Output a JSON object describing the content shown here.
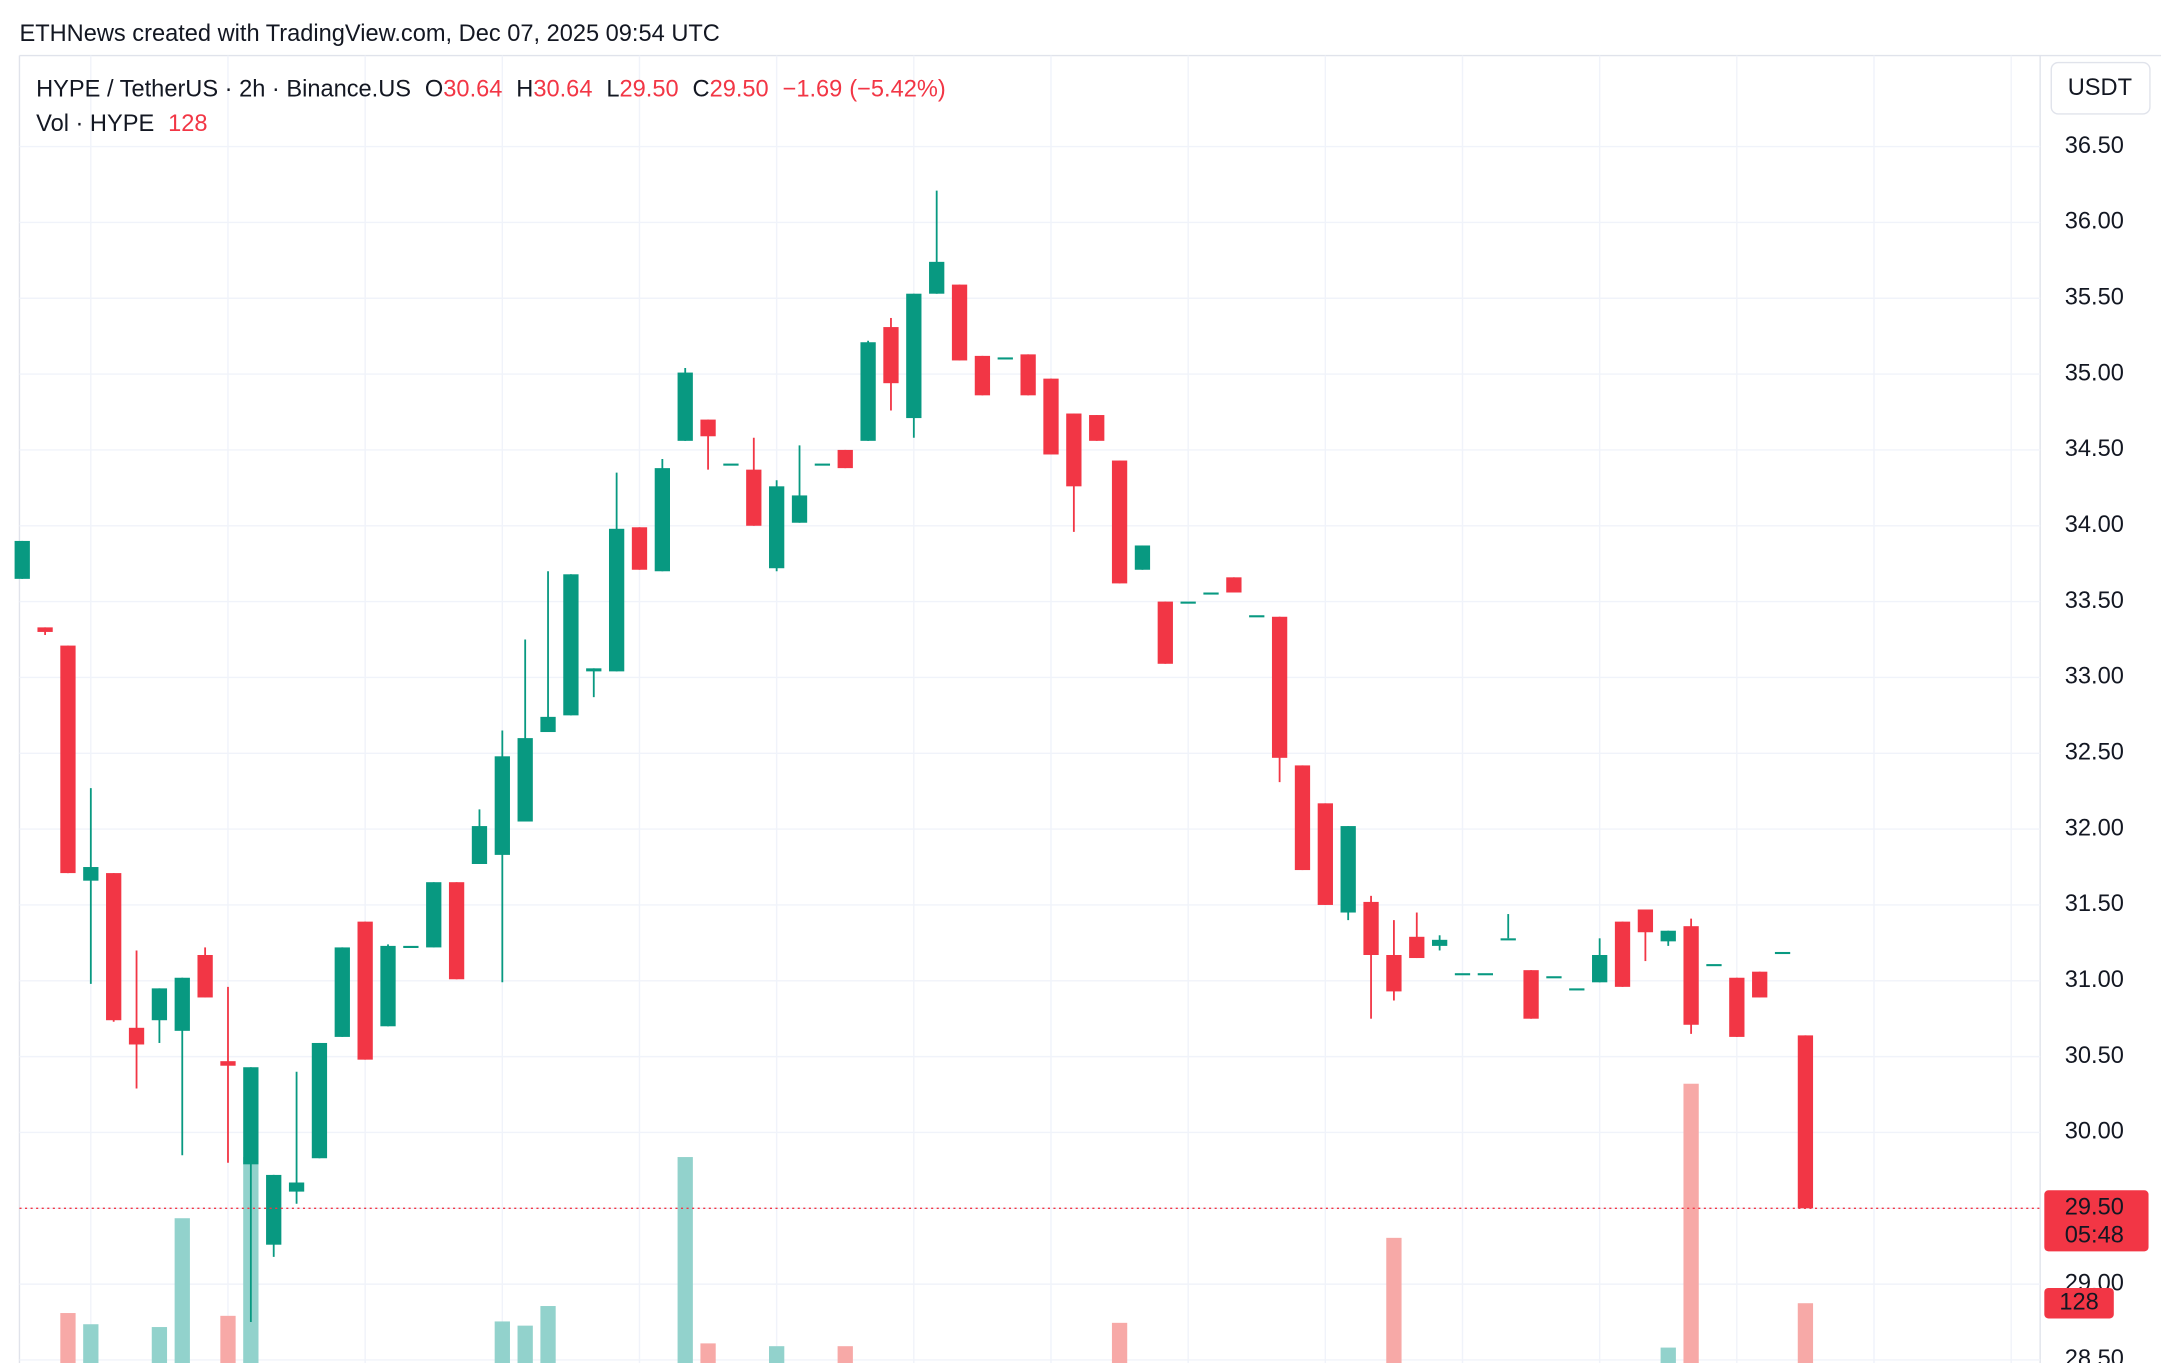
{
  "attribution": "ETHNews created with TradingView.com, Dec 07, 2025 09:54 UTC",
  "chart_data": {
    "type": "candlestick",
    "legend": {
      "symbol": "HYPE / TetherUS · 2h · Binance.US",
      "labels": [
        "O",
        "H",
        "L",
        "C"
      ],
      "values": [
        30.64,
        30.64,
        {
          "value": 29.5,
          "label": "29.50"
        },
        {
          "value": 29.5,
          "label": "29.50"
        }
      ],
      "change": {
        "value": -1.69,
        "label": "−1.69"
      },
      "change_pct": {
        "value": -5.42,
        "label": "(−5.42%)"
      },
      "volume_label": "Vol · HYPE",
      "volume": 128
    },
    "axis_unit": "USDT",
    "last_price": {
      "value": 29.5,
      "label": "29.50"
    },
    "countdown": "05:48",
    "last_volume": 128,
    "up_color": "#089981",
    "down_color": "#f23645",
    "up_volume_color": "#92d2cc",
    "down_volume_color": "#f7a9a7",
    "grid": true,
    "ylim": [
      28.48,
      37.1
    ],
    "yticks": [
      {
        "value": 28.5,
        "label": "28.50"
      },
      {
        "value": 29,
        "label": "29.00"
      },
      {
        "value": 29.5,
        "label": "29.50"
      },
      {
        "value": 30,
        "label": "30.00"
      },
      {
        "value": 30.5,
        "label": "30.50"
      },
      {
        "value": 31,
        "label": "31.00"
      },
      {
        "value": 31.5,
        "label": "31.50"
      },
      {
        "value": 32,
        "label": "32.00"
      },
      {
        "value": 32.5,
        "label": "32.50"
      },
      {
        "value": 33,
        "label": "33.00"
      },
      {
        "value": 33.5,
        "label": "33.50"
      },
      {
        "value": 34,
        "label": "34.00"
      },
      {
        "value": 34.5,
        "label": "34.50"
      },
      {
        "value": 35,
        "label": "35.00"
      },
      {
        "value": 35.5,
        "label": "35.50"
      },
      {
        "value": 36,
        "label": "36.00"
      },
      {
        "value": 36.5,
        "label": "36.50"
      }
    ],
    "open": [
      33.65,
      33.33,
      33.21,
      31.66,
      31.71,
      30.69,
      30.74,
      30.67,
      31.17,
      30.47,
      29.79,
      29.26,
      29.61,
      29.83,
      30.63,
      31.39,
      30.7,
      31.23,
      31.22,
      31.65,
      31.77,
      31.83,
      32.05,
      32.64,
      32.75,
      33.04,
      33.04,
      33.99,
      33.7,
      34.56,
      34.7,
      34.41,
      34.37,
      33.72,
      34.02,
      34.41,
      34.5,
      34.56,
      35.31,
      34.71,
      35.53,
      35.59,
      35.12,
      35.11,
      35.13,
      34.97,
      34.74,
      34.73,
      34.43,
      33.71,
      33.5,
      33.5,
      33.56,
      33.66,
      33.41,
      33.4,
      32.42,
      32.17,
      31.45,
      31.52,
      31.17,
      31.29,
      31.23,
      31.05,
      31.05,
      31.28,
      31.07,
      31.03,
      30.95,
      30.99,
      31.39,
      31.47,
      31.26,
      31.36,
      31.11,
      31.02,
      31.06,
      31.19,
      30.64
    ],
    "high": [
      33.9,
      33.33,
      33.21,
      32.27,
      31.71,
      31.2,
      30.95,
      31.02,
      31.22,
      30.96,
      30.43,
      29.72,
      30.4,
      30.59,
      31.22,
      31.39,
      31.24,
      31.23,
      31.65,
      31.65,
      32.13,
      32.65,
      33.25,
      33.7,
      33.68,
      33.06,
      34.35,
      33.99,
      34.44,
      35.04,
      34.7,
      34.41,
      34.58,
      34.3,
      34.53,
      34.41,
      34.5,
      35.22,
      35.37,
      35.53,
      36.21,
      35.59,
      35.12,
      35.11,
      35.13,
      34.97,
      34.74,
      34.73,
      34.43,
      33.87,
      33.5,
      33.5,
      33.56,
      33.66,
      33.41,
      33.4,
      32.42,
      32.17,
      32.02,
      31.56,
      31.4,
      31.45,
      31.3,
      31.05,
      31.05,
      31.44,
      31.07,
      31.03,
      30.95,
      31.28,
      31.39,
      31.47,
      31.33,
      31.41,
      31.11,
      31.02,
      31.06,
      31.19,
      30.64
    ],
    "low": [
      33.65,
      33.28,
      31.71,
      30.98,
      30.73,
      30.29,
      30.59,
      29.85,
      30.89,
      29.8,
      28.75,
      29.18,
      29.53,
      29.83,
      30.63,
      30.48,
      30.7,
      31.23,
      31.22,
      31.01,
      31.77,
      30.99,
      32.05,
      32.64,
      32.75,
      32.87,
      33.04,
      33.71,
      33.7,
      34.56,
      34.37,
      34.41,
      34.0,
      33.7,
      34.02,
      34.41,
      34.38,
      34.56,
      34.76,
      34.58,
      35.53,
      35.09,
      34.86,
      35.11,
      34.86,
      34.47,
      33.96,
      34.56,
      33.62,
      33.71,
      33.09,
      33.5,
      33.56,
      33.56,
      33.41,
      32.31,
      31.73,
      31.5,
      31.4,
      30.75,
      30.87,
      31.15,
      31.2,
      31.05,
      31.05,
      31.28,
      30.75,
      31.03,
      30.95,
      30.99,
      30.96,
      31.13,
      31.23,
      30.65,
      31.11,
      30.63,
      30.89,
      31.19,
      29.5
    ],
    "close": [
      33.9,
      33.3,
      31.71,
      31.75,
      30.74,
      30.58,
      30.95,
      31.02,
      30.89,
      30.44,
      30.43,
      29.72,
      29.67,
      30.59,
      31.22,
      30.48,
      31.23,
      31.23,
      31.65,
      31.01,
      32.02,
      32.48,
      32.6,
      32.74,
      33.68,
      33.06,
      33.98,
      33.71,
      34.38,
      35.01,
      34.59,
      34.41,
      34.0,
      34.26,
      34.2,
      34.41,
      34.38,
      35.21,
      34.94,
      35.53,
      35.74,
      35.09,
      34.86,
      35.11,
      34.86,
      34.47,
      34.26,
      34.56,
      33.62,
      33.87,
      33.09,
      33.5,
      33.56,
      33.56,
      33.41,
      32.47,
      31.73,
      31.5,
      32.02,
      31.17,
      30.93,
      31.15,
      31.27,
      31.05,
      31.05,
      31.28,
      30.75,
      31.03,
      30.95,
      31.17,
      30.96,
      31.32,
      31.33,
      30.71,
      31.11,
      30.63,
      30.89,
      31.19,
      29.5
    ],
    "volume": [
      null,
      null,
      107,
      83,
      null,
      null,
      77,
      310,
      null,
      101,
      441,
      null,
      null,
      null,
      null,
      null,
      null,
      null,
      null,
      null,
      null,
      89,
      80,
      122,
      null,
      null,
      null,
      null,
      null,
      441,
      42,
      null,
      null,
      36,
      null,
      null,
      36,
      null,
      null,
      null,
      null,
      null,
      null,
      null,
      null,
      null,
      null,
      null,
      86,
      null,
      null,
      null,
      null,
      null,
      null,
      null,
      null,
      null,
      null,
      null,
      268,
      null,
      null,
      null,
      null,
      null,
      null,
      null,
      null,
      null,
      null,
      null,
      33,
      598,
      null,
      null,
      null,
      null,
      128
    ]
  }
}
